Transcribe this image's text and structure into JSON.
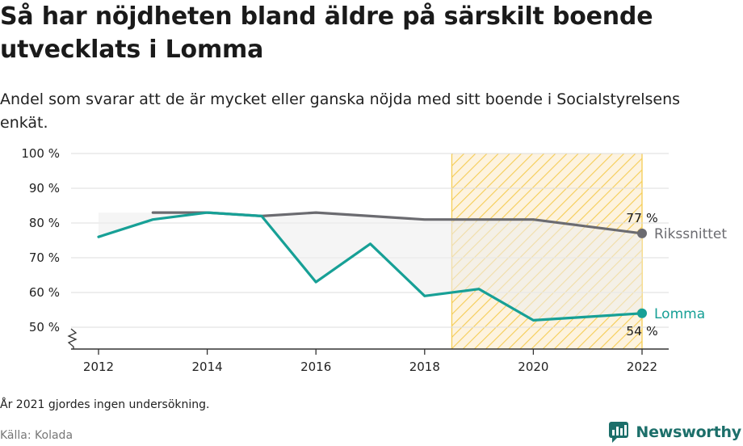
{
  "header": {
    "title": "Så har nöjdheten bland äldre på särskilt boende utvecklats i Lomma",
    "subtitle": "Andel som svarar att de är mycket eller ganska nöjda med sitt boende i Socialstyrelsens enkät."
  },
  "footer": {
    "note": "År 2021 gjordes ingen undersökning.",
    "source": "Källa: Kolada",
    "brand": "Newsworthy"
  },
  "colors": {
    "lomma": "#17a096",
    "riks": "#6b6b70",
    "highlight": "#f5cd55",
    "gap_fill": "#ececec",
    "grid": "#dedede"
  },
  "chart_data": {
    "type": "line",
    "ylim": [
      45,
      100
    ],
    "xlim": [
      2011.5,
      2022.5
    ],
    "y_ticks": [
      50,
      60,
      70,
      80,
      90,
      100
    ],
    "y_tick_labels": [
      "50 %",
      "60 %",
      "70 %",
      "80 %",
      "90 %",
      "100 %"
    ],
    "x_ticks": [
      2012,
      2014,
      2016,
      2018,
      2020,
      2022
    ],
    "x_tick_labels": [
      "2012",
      "2014",
      "2016",
      "2018",
      "2020",
      "2022"
    ],
    "highlight_range": [
      2018.5,
      2022
    ],
    "series": [
      {
        "name": "Rikssnittet",
        "x": [
          2013,
          2014,
          2015,
          2016,
          2017,
          2018,
          2019,
          2020,
          2022
        ],
        "values": [
          83,
          83,
          82,
          83,
          82,
          81,
          81,
          81,
          77
        ],
        "end_label": "77 %"
      },
      {
        "name": "Lomma",
        "x": [
          2012,
          2013,
          2014,
          2015,
          2016,
          2017,
          2018,
          2019,
          2020,
          2022
        ],
        "values": [
          76,
          81,
          83,
          82,
          63,
          74,
          59,
          61,
          52,
          54
        ],
        "end_label": "54 %"
      }
    ]
  }
}
